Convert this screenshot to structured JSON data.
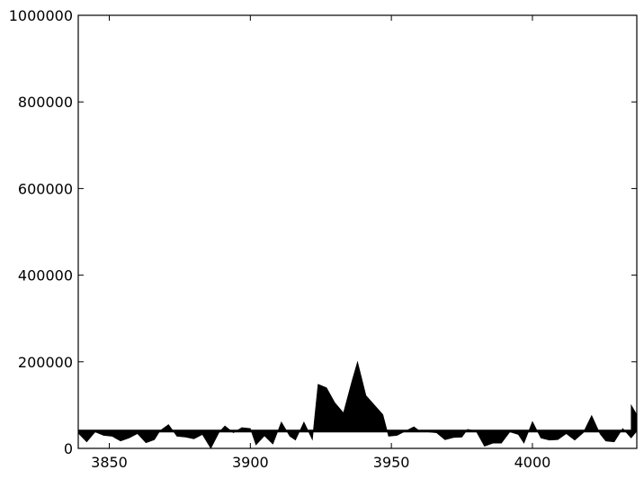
{
  "chart_data": {
    "type": "area",
    "title": "",
    "xlabel": "",
    "ylabel": "",
    "xlim": [
      3839,
      4037
    ],
    "ylim": [
      0,
      1000000
    ],
    "baseline": 40000,
    "grid": false,
    "fill_color": "#000000",
    "x_ticks": [
      3850,
      3900,
      3950,
      4000
    ],
    "y_ticks": [
      0,
      200000,
      400000,
      600000,
      800000,
      1000000
    ],
    "x_tick_labels": [
      "3850",
      "3900",
      "3950",
      "4000"
    ],
    "y_tick_labels": [
      "0",
      "200000",
      "400000",
      "600000",
      "800000",
      "1000000"
    ],
    "series": [
      {
        "x": [
          3839,
          3842,
          3845,
          3848,
          3851,
          3854,
          3857,
          3860,
          3863,
          3866,
          3868,
          3871,
          3874,
          3877,
          3880,
          3883,
          3886,
          3889,
          3891,
          3894,
          3897,
          3900,
          3902,
          3905,
          3908,
          3911,
          3914,
          3916,
          3919,
          3922,
          3924,
          3927,
          3930,
          3933,
          3936,
          3938,
          3941,
          3944,
          3947,
          3949,
          3952,
          3955,
          3958,
          3960,
          3963,
          3966,
          3969,
          3972,
          3975,
          3977,
          3980,
          3983,
          3986,
          3989,
          3992,
          3995,
          3997,
          4000,
          4003,
          4006,
          4009,
          4012,
          4015,
          4018,
          4021,
          4024,
          4026,
          4029,
          4032,
          4035,
          4037
        ],
        "y": [
          35000,
          15000,
          38000,
          30000,
          28000,
          17000,
          24000,
          34000,
          13000,
          20000,
          41000,
          55000,
          28000,
          26000,
          22000,
          32000,
          0,
          38000,
          52000,
          36000,
          48000,
          46000,
          8000,
          29000,
          10000,
          61000,
          28000,
          19000,
          61000,
          20000,
          148000,
          140000,
          105000,
          82000,
          155000,
          200000,
          122000,
          100000,
          78000,
          28000,
          30000,
          40000,
          50000,
          40000,
          38000,
          36000,
          20000,
          25000,
          26000,
          44000,
          40000,
          5000,
          12000,
          12000,
          38000,
          32000,
          12000,
          62000,
          24000,
          19000,
          20000,
          34000,
          19000,
          36000,
          76000,
          33000,
          17000,
          15000,
          46000,
          24000,
          40000
        ]
      },
      {
        "x": [
          4035,
          4037
        ],
        "y": [
          100000,
          78000
        ]
      }
    ]
  }
}
